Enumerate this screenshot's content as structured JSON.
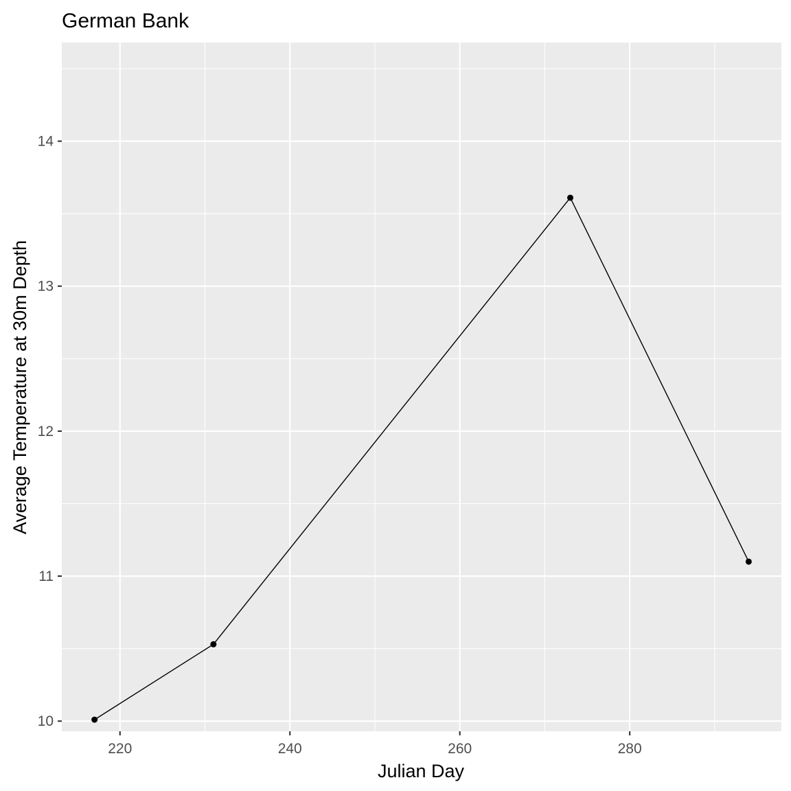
{
  "chart_data": {
    "type": "line",
    "title": "German Bank",
    "xlabel": "Julian Day",
    "ylabel": "Average Temperature at 30m Depth",
    "x": [
      217,
      231,
      273,
      294
    ],
    "series": [
      {
        "values": [
          10.01,
          10.53,
          13.61,
          11.1
        ]
      }
    ],
    "xlim": [
      213.15,
      297.85
    ],
    "ylim": [
      9.93,
      14.68
    ],
    "x_major_ticks": [
      220,
      240,
      260,
      280
    ],
    "x_minor_ticks": [
      230,
      250,
      270,
      290
    ],
    "y_major_ticks": [
      10,
      11,
      12,
      13,
      14
    ],
    "y_minor_ticks": [
      10.5,
      11.5,
      12.5,
      13.5,
      14.5
    ],
    "x_tick_labels": [
      "220",
      "240",
      "260",
      "280"
    ],
    "y_tick_labels": [
      "10",
      "11",
      "12",
      "13",
      "14"
    ],
    "grid": true,
    "legend": "none",
    "colors": {
      "panel": "#ebebeb",
      "grid": "#ffffff",
      "line": "#000000",
      "point": "#000000",
      "tick_text": "#4d4d4d"
    }
  }
}
